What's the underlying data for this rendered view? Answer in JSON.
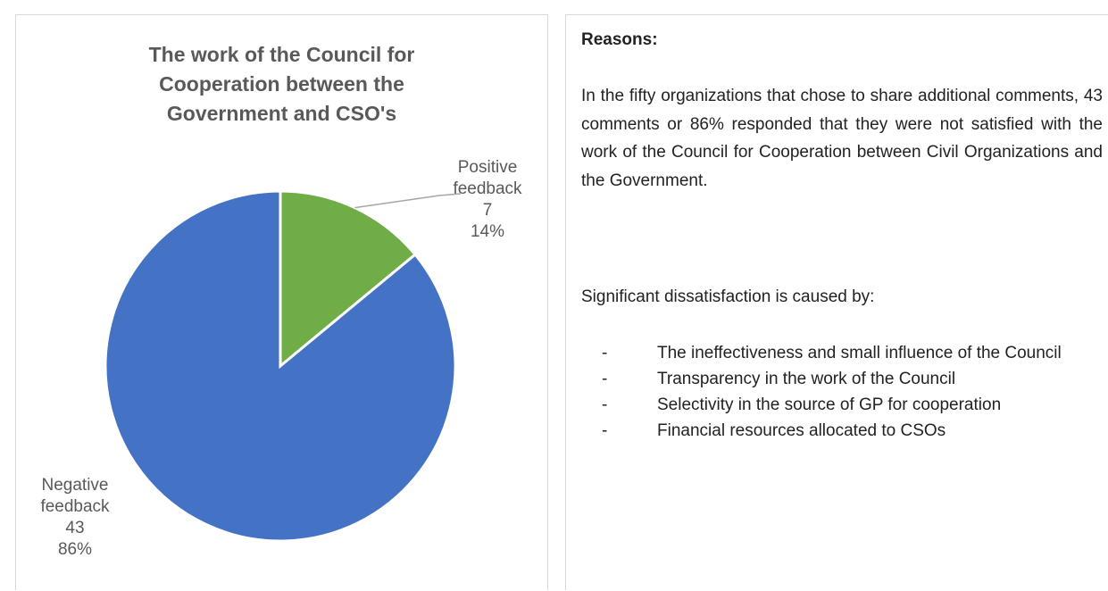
{
  "chart_data": {
    "type": "pie",
    "title": "The work of the Council for Cooperation between the Government and CSO's",
    "title_lines": [
      "The work of the Council for",
      "Cooperation between the",
      "Government and CSO's"
    ],
    "slices": [
      {
        "name": "Positive feedback",
        "label_lines": [
          "Positive",
          "feedback"
        ],
        "value": 7,
        "value_label": "7",
        "percent": 14,
        "percent_label": "14%",
        "color": "#70ad47"
      },
      {
        "name": "Negative feedback",
        "label_lines": [
          "Negative",
          "feedback"
        ],
        "value": 43,
        "value_label": "43",
        "percent": 86,
        "percent_label": "86%",
        "color": "#4472c4"
      }
    ],
    "legend": "none",
    "border_color": "#ffffff"
  },
  "text_panel": {
    "heading": "Reasons:",
    "paragraph_1": "In the fifty organizations that chose to share additional comments, 43 comments or 86% responded that they were not satisfied with the work of the Council for Cooperation between Civil Organizations and the Government.",
    "paragraph_2": "Significant dissatisfaction is caused by:",
    "bullet_dash": "-",
    "bullets": [
      "The ineffectiveness and small influence of the Council",
      "Transparency in the work of the Council",
      "Selectivity in the source of GP for cooperation",
      "Financial resources allocated to CSOs"
    ]
  }
}
